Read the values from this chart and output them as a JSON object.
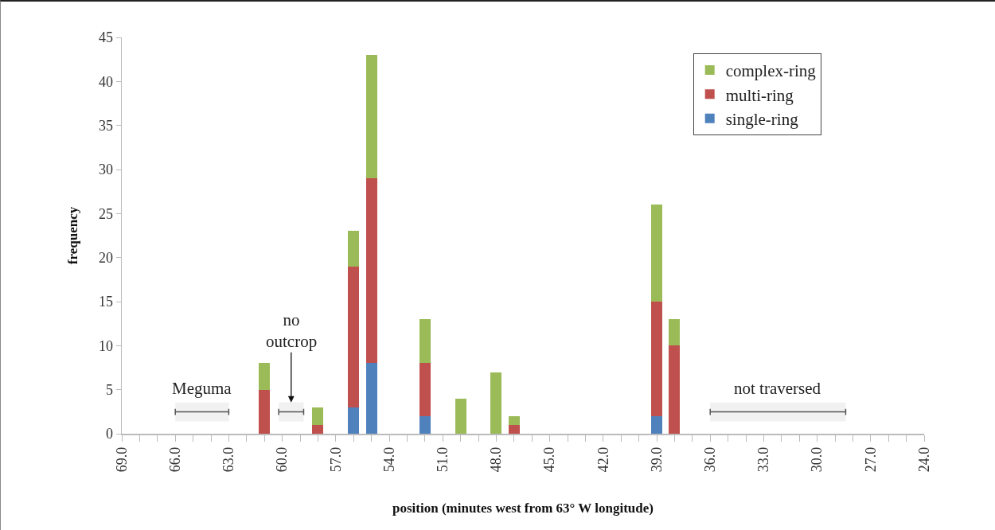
{
  "chart_data": {
    "type": "bar",
    "stacked": true,
    "xlabel": "position (minutes west from 63° W longitude)",
    "ylabel": "frequency",
    "x": [
      61,
      58,
      56,
      55,
      52,
      50,
      48,
      47,
      39,
      38
    ],
    "series": [
      {
        "name": "single-ring",
        "color": "#4f81bd",
        "values": [
          0,
          0,
          3,
          8,
          2,
          0,
          0,
          0,
          2,
          0
        ]
      },
      {
        "name": "multi-ring",
        "color": "#c0504d",
        "values": [
          5,
          1,
          16,
          21,
          6,
          0,
          0,
          1,
          13,
          10
        ]
      },
      {
        "name": "complex-ring",
        "color": "#9bbb59",
        "values": [
          3,
          2,
          4,
          14,
          5,
          4,
          7,
          1,
          11,
          3
        ]
      }
    ],
    "xlim": [
      69,
      24
    ],
    "xticks": [
      {
        "value": 69,
        "label": "69.0"
      },
      {
        "value": 68,
        "label": null
      },
      {
        "value": 67,
        "label": null
      },
      {
        "value": 66,
        "label": "66.0"
      },
      {
        "value": 65,
        "label": null
      },
      {
        "value": 64,
        "label": null
      },
      {
        "value": 63,
        "label": "63.0"
      },
      {
        "value": 62,
        "label": null
      },
      {
        "value": 61,
        "label": null
      },
      {
        "value": 60,
        "label": "60.0"
      },
      {
        "value": 59,
        "label": null
      },
      {
        "value": 58,
        "label": null
      },
      {
        "value": 57,
        "label": "57.0"
      },
      {
        "value": 56,
        "label": null
      },
      {
        "value": 55,
        "label": null
      },
      {
        "value": 54,
        "label": "54.0"
      },
      {
        "value": 53,
        "label": null
      },
      {
        "value": 52,
        "label": null
      },
      {
        "value": 51,
        "label": "51.0"
      },
      {
        "value": 50,
        "label": null
      },
      {
        "value": 49,
        "label": null
      },
      {
        "value": 48,
        "label": "48.0"
      },
      {
        "value": 47,
        "label": null
      },
      {
        "value": 46,
        "label": null
      },
      {
        "value": 45,
        "label": "45.0"
      },
      {
        "value": 44,
        "label": null
      },
      {
        "value": 43,
        "label": null
      },
      {
        "value": 42,
        "label": "42.0"
      },
      {
        "value": 41,
        "label": null
      },
      {
        "value": 40,
        "label": null
      },
      {
        "value": 39,
        "label": "39.0"
      },
      {
        "value": 38,
        "label": null
      },
      {
        "value": 37,
        "label": null
      },
      {
        "value": 36,
        "label": "36.0"
      },
      {
        "value": 35,
        "label": null
      },
      {
        "value": 34,
        "label": null
      },
      {
        "value": 33,
        "label": "33.0"
      },
      {
        "value": 32,
        "label": null
      },
      {
        "value": 31,
        "label": null
      },
      {
        "value": 30,
        "label": "30.0"
      },
      {
        "value": 29,
        "label": null
      },
      {
        "value": 28,
        "label": null
      },
      {
        "value": 27,
        "label": "27.0"
      },
      {
        "value": 26,
        "label": null
      },
      {
        "value": 25,
        "label": null
      },
      {
        "value": 24,
        "label": "24.0"
      }
    ],
    "ylim": [
      0,
      45
    ],
    "yticks": [
      0,
      5,
      10,
      15,
      20,
      25,
      30,
      35,
      40,
      45
    ],
    "grid": false,
    "legend": "top right",
    "bands": [
      {
        "axis": "x",
        "from": 66,
        "to": 63,
        "label": "Meguma"
      },
      {
        "axis": "x",
        "from": 60.2,
        "to": 58.8,
        "label": "no outcrop"
      },
      {
        "axis": "x",
        "from": 36,
        "to": 28.4,
        "label": "not traversed"
      }
    ]
  }
}
